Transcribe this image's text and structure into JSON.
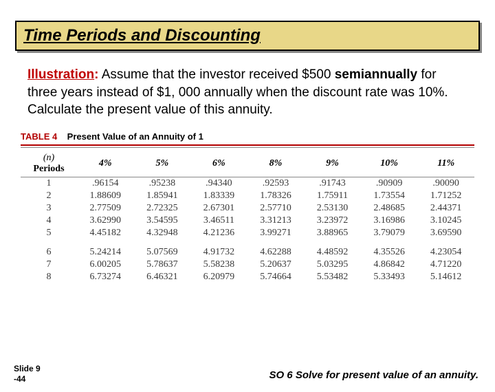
{
  "title": "Time Periods and Discounting",
  "illustration_label": "Illustration",
  "colon": ":",
  "body_line1": "Assume that the investor received $500",
  "body_bold": "semiannually",
  "body_rest": " for three years instead of $1, 000 annually when the discount rate was 10%.  Calculate the present value of this annuity.",
  "table": {
    "caption_label": "TABLE 4",
    "caption_title": "Present Value of an Annuity of 1",
    "n_label": "(n)",
    "periods_label": "Periods",
    "cols": [
      "4%",
      "5%",
      "6%",
      "8%",
      "9%",
      "10%",
      "11%"
    ],
    "rows_a": [
      [
        "1",
        ".96154",
        ".95238",
        ".94340",
        ".92593",
        ".91743",
        ".90909",
        ".90090"
      ],
      [
        "2",
        "1.88609",
        "1.85941",
        "1.83339",
        "1.78326",
        "1.75911",
        "1.73554",
        "1.71252"
      ],
      [
        "3",
        "2.77509",
        "2.72325",
        "2.67301",
        "2.57710",
        "2.53130",
        "2.48685",
        "2.44371"
      ],
      [
        "4",
        "3.62990",
        "3.54595",
        "3.46511",
        "3.31213",
        "3.23972",
        "3.16986",
        "3.10245"
      ],
      [
        "5",
        "4.45182",
        "4.32948",
        "4.21236",
        "3.99271",
        "3.88965",
        "3.79079",
        "3.69590"
      ]
    ],
    "rows_b": [
      [
        "6",
        "5.24214",
        "5.07569",
        "4.91732",
        "4.62288",
        "4.48592",
        "4.35526",
        "4.23054"
      ],
      [
        "7",
        "6.00205",
        "5.78637",
        "5.58238",
        "5.20637",
        "5.03295",
        "4.86842",
        "4.71220"
      ],
      [
        "8",
        "6.73274",
        "6.46321",
        "6.20979",
        "5.74664",
        "5.53482",
        "5.33493",
        "5.14612"
      ]
    ]
  },
  "slide_num_1": "Slide 9",
  "slide_num_2": "-44",
  "so_text": "SO 6  Solve for present value of an annuity."
}
